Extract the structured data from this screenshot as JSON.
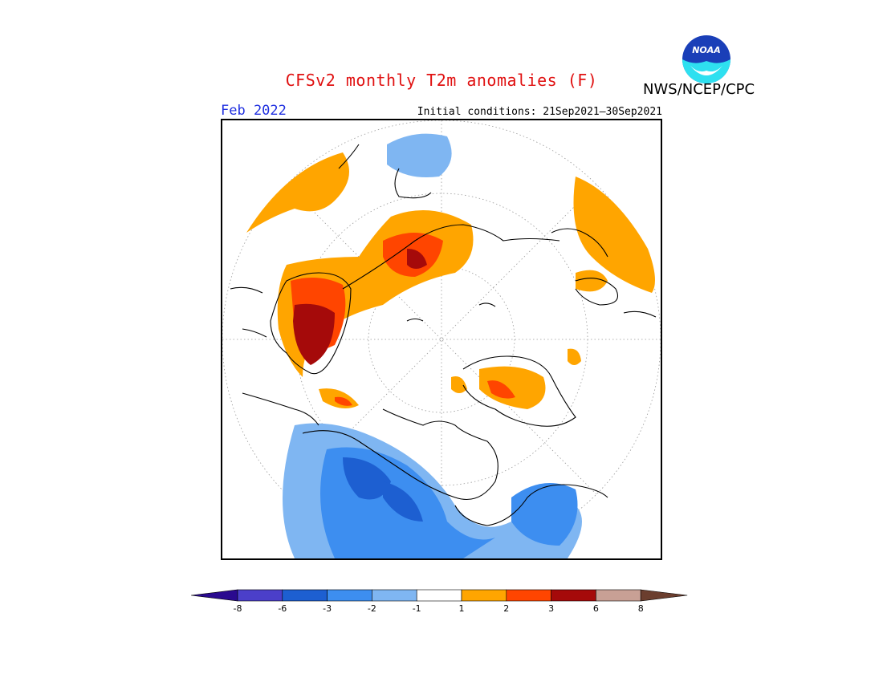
{
  "header": {
    "title": "CFSv2 monthly T2m anomalies (F)",
    "agency": "NWS/NCEP/CPC",
    "logo_text": "NOAA",
    "period": "Feb 2022",
    "initial_conditions": "Initial conditions: 21Sep2021—30Sep2021"
  },
  "map": {
    "projection": "north polar stereographic",
    "field": "T2m anomaly"
  },
  "colorbar": {
    "ticks": [
      "-8",
      "-6",
      "-3",
      "-2",
      "-1",
      "1",
      "2",
      "3",
      "6",
      "8"
    ],
    "colors": [
      "#2a0a8f",
      "#4b3fc9",
      "#1d5fd1",
      "#3d8ef0",
      "#7fb6f2",
      "#ffffff",
      "#ffa500",
      "#ff4500",
      "#a50a0a",
      "#c8a095",
      "#6b3e2e"
    ]
  }
}
